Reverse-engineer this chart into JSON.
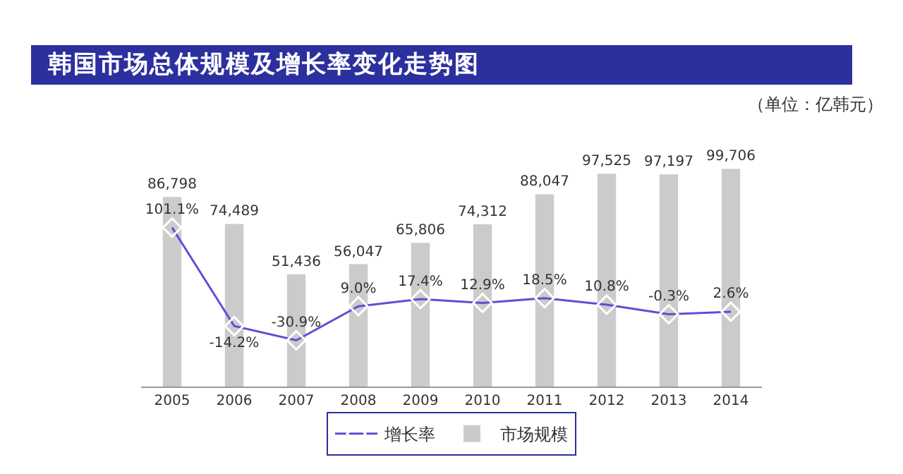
{
  "chart_data": {
    "type": "bar",
    "title": "韩国市场总体规模及增长率变化走势图",
    "subtitle": "（单位：亿韩元）",
    "categories": [
      "2005",
      "2006",
      "2007",
      "2008",
      "2009",
      "2010",
      "2011",
      "2012",
      "2013",
      "2014"
    ],
    "series": [
      {
        "name": "增长率",
        "type": "line",
        "axis": "y2",
        "color": "#5b50d6",
        "values": [
          101.1,
          -14.2,
          -30.9,
          9.0,
          17.4,
          12.9,
          18.5,
          10.8,
          -0.3,
          2.6
        ],
        "value_labels": [
          "101.1%",
          "-14.2%",
          "-30.9%",
          "9.0%",
          "17.4%",
          "12.9%",
          "18.5%",
          "10.8%",
          "-0.3%",
          "2.6%"
        ]
      },
      {
        "name": "市场规模",
        "color": "#cbcbcb",
        "values": [
          86798,
          74489,
          51436,
          56047,
          65806,
          74312,
          88047,
          97525,
          97197,
          99706
        ],
        "value_labels": [
          "86,798",
          "74,489",
          "51,436",
          "56,047",
          "65,806",
          "74,312",
          "88,047",
          "97,525",
          "97,197",
          "99,706"
        ]
      }
    ],
    "marker": "diamond",
    "line_style": "solid",
    "legend": "bottom",
    "grid": false
  }
}
